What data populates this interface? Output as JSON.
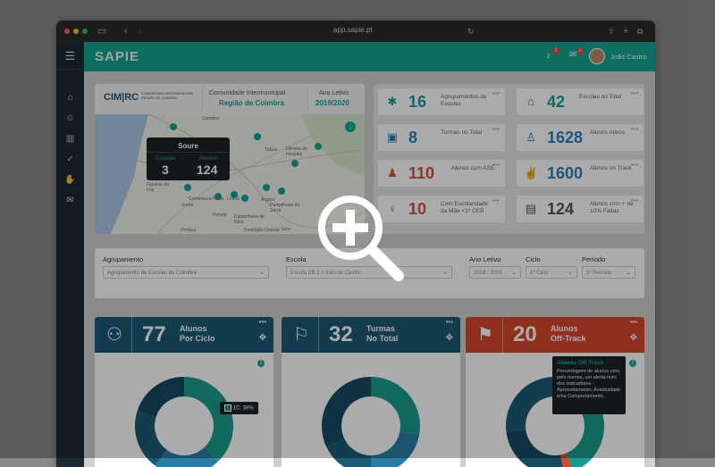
{
  "window": {
    "url": "app.sapie.pt"
  },
  "header": {
    "logo": "SAPIE",
    "notif_badge": "2",
    "mail_badge": "3",
    "user_name": "João Castro"
  },
  "map_panel": {
    "org_logo": "CIM|RC",
    "org_logo_sub": "COMUNIDADE INTERMUNICIPAL REGIÃO DE COIMBRA",
    "community_label": "Comunidade Intermunicipal",
    "community_value": "Região de Coimbra",
    "year_label": "Ano Letivo",
    "year_value": "2019/2020",
    "tooltip": {
      "title": "Soure",
      "col1_label": "Escolas",
      "col1_value": "3",
      "col2_label": "Alunos",
      "col2_value": "124"
    },
    "places": [
      "Coimbra",
      "Oliveira do Hospital",
      "Tábua",
      "Arganil",
      "Lousã",
      "Penela",
      "Soure",
      "Condeixa-a-Nova",
      "Castanheira de Pêra",
      "Pampilhosa da Serra",
      "Pedrógão Grande",
      "Figueira da Foz",
      "Pombal",
      "Góis"
    ]
  },
  "stats": [
    {
      "value": "16",
      "label": "Agrupamentos de Escolas",
      "color": "#1a9c8e",
      "icon": "network-icon"
    },
    {
      "value": "42",
      "label": "Escolas no Total",
      "color": "#1a9c8e",
      "icon": "school-icon"
    },
    {
      "value": "8",
      "label": "Turmas no Total",
      "color": "#2e7fb8",
      "icon": "classroom-icon"
    },
    {
      "value": "1628",
      "label": "Alunos Ativos",
      "color": "#2e7fb8",
      "icon": "students-icon"
    },
    {
      "value": "110",
      "label": "Alunos com ASE",
      "color": "#c9553f",
      "icon": "family-icon"
    },
    {
      "value": "1600",
      "label": "Alunos on Track",
      "color": "#2e7fb8",
      "icon": "celebrate-icon"
    },
    {
      "value": "10",
      "label": "Com Escolaridade da Mãe <1º CEB",
      "color": "#c9553f",
      "icon": "mother-icon"
    },
    {
      "value": "124",
      "label": "Alunos com + de 10% Faltas",
      "color": "#555555",
      "icon": "clipboard-icon"
    }
  ],
  "filters": {
    "agrupamento": {
      "label": "Agrupamento",
      "value": "Agrupamento de Escolas de Coimbra"
    },
    "escola": {
      "label": "Escola",
      "value": "Escola EB 2,3 Inês de Castro"
    },
    "ano": {
      "label": "Ano Letivo",
      "value": "2018 / 2019"
    },
    "ciclo": {
      "label": "Ciclo",
      "value": "1º Ciclo"
    },
    "periodo": {
      "label": "Período",
      "value": "3º Período"
    }
  },
  "cards": [
    {
      "value": "77",
      "label1": "Alunos",
      "label2": "Por Ciclo",
      "color": "#1d5a73",
      "icon": "parents-icon"
    },
    {
      "value": "32",
      "label1": "Turmas",
      "label2": "No Total",
      "color": "#1d5a73",
      "icon": "teacher-icon"
    },
    {
      "value": "20",
      "label1": "Alunos",
      "label2": "Off-Track",
      "color": "#d8472f",
      "icon": "student-desk-icon"
    }
  ],
  "chart_data": [
    {
      "type": "pie",
      "labels": [
        "1C",
        "",
        "",
        ""
      ],
      "values": [
        38,
        22,
        20,
        20
      ],
      "data_labels": [
        "1C: 38%"
      ],
      "colors": [
        "#1a9c8e",
        "#2b7da3",
        "#1d5a73",
        "#164b61"
      ]
    },
    {
      "type": "pie",
      "values": [
        28,
        22,
        18,
        32
      ],
      "colors": [
        "#1a9c8e",
        "#2b7da3",
        "#1d5a73",
        "#164b61"
      ]
    },
    {
      "type": "pie",
      "values": [
        44,
        3,
        26,
        27
      ],
      "colors": [
        "#1a9c8e",
        "#d8472f",
        "#164b61",
        "#1d5a73"
      ]
    }
  ],
  "offtrack_tooltip": {
    "title": "Alunos Off-Track",
    "body": "Percentagem de alunos com, pelo menos, um alerta num dos indicadores - Aproveitamento, Assiduidade e/ou Comportamento."
  }
}
